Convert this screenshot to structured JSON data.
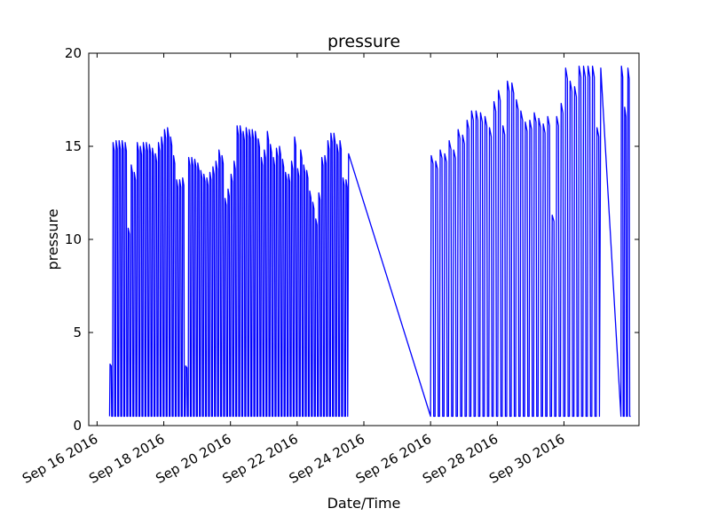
{
  "chart_data": {
    "type": "line",
    "title": "pressure",
    "xlabel": "Date/Time",
    "ylabel": "pressure",
    "ylim": [
      0,
      20
    ],
    "xlim": [
      "2016-09-15T18:00",
      "2016-10-02T06:00"
    ],
    "grid": false,
    "line_color": "#0000ff",
    "x_ticks": [
      "Sep 16 2016",
      "Sep 18 2016",
      "Sep 20 2016",
      "Sep 22 2016",
      "Sep 24 2016",
      "Sep 26 2016",
      "Sep 28 2016",
      "Sep 30 2016"
    ],
    "y_ticks": [
      "0",
      "5",
      "10",
      "15",
      "20"
    ],
    "series": [
      {
        "name": "",
        "segments": [
          {
            "start": "2016-09-16T09:00",
            "end": "2016-09-23T13:00",
            "low": 0.5,
            "peaks": [
              3.3,
              15.2,
              15.3,
              15.3,
              15.3,
              15.2,
              10.6,
              14.0,
              13.6,
              15.2,
              15.0,
              15.2,
              15.2,
              15.1,
              14.9,
              14.6,
              15.2,
              15.5,
              15.9,
              16.0,
              15.5,
              14.5,
              13.2,
              13.2,
              13.3,
              3.2,
              14.4,
              14.4,
              14.3,
              14.1,
              13.7,
              13.5,
              13.3,
              13.6,
              13.9,
              14.2,
              14.8,
              14.5,
              12.2,
              12.7,
              13.5,
              14.2,
              16.1,
              16.1,
              15.8,
              16.0,
              15.9,
              15.9,
              15.8,
              15.4,
              14.4,
              14.8,
              15.8,
              15.1,
              14.4,
              14.9,
              15.0,
              14.3,
              13.6,
              13.5,
              14.2,
              15.5,
              13.8,
              14.8,
              14.0,
              13.7,
              12.6,
              12.0,
              11.1,
              12.5,
              14.4,
              14.5,
              15.3,
              15.7,
              15.7,
              15.1,
              15.3,
              13.3,
              13.2
            ],
            "final": 14.6
          },
          {
            "start": "2016-09-26T00:00",
            "end": "2016-10-01T02:30",
            "low": 0.5,
            "peaks": [
              14.5,
              14.2,
              14.8,
              14.6,
              15.3,
              14.8,
              15.9,
              15.6,
              16.4,
              16.9,
              16.9,
              16.8,
              16.6,
              16.0,
              17.4,
              18.0,
              16.1,
              18.5,
              18.4,
              17.5,
              16.9,
              16.3,
              16.4,
              16.8,
              16.5,
              16.2,
              16.6,
              11.3,
              16.6,
              17.3,
              19.2,
              18.5,
              18.2,
              19.3,
              19.3,
              19.3,
              19.3,
              16.0
            ],
            "final": 19.2
          },
          {
            "start": "2016-10-01T17:00",
            "end": "2016-10-02T00:00",
            "low": 0.5,
            "peaks": [
              19.3,
              17.1,
              19.2
            ],
            "final": 0.5
          }
        ]
      }
    ]
  }
}
